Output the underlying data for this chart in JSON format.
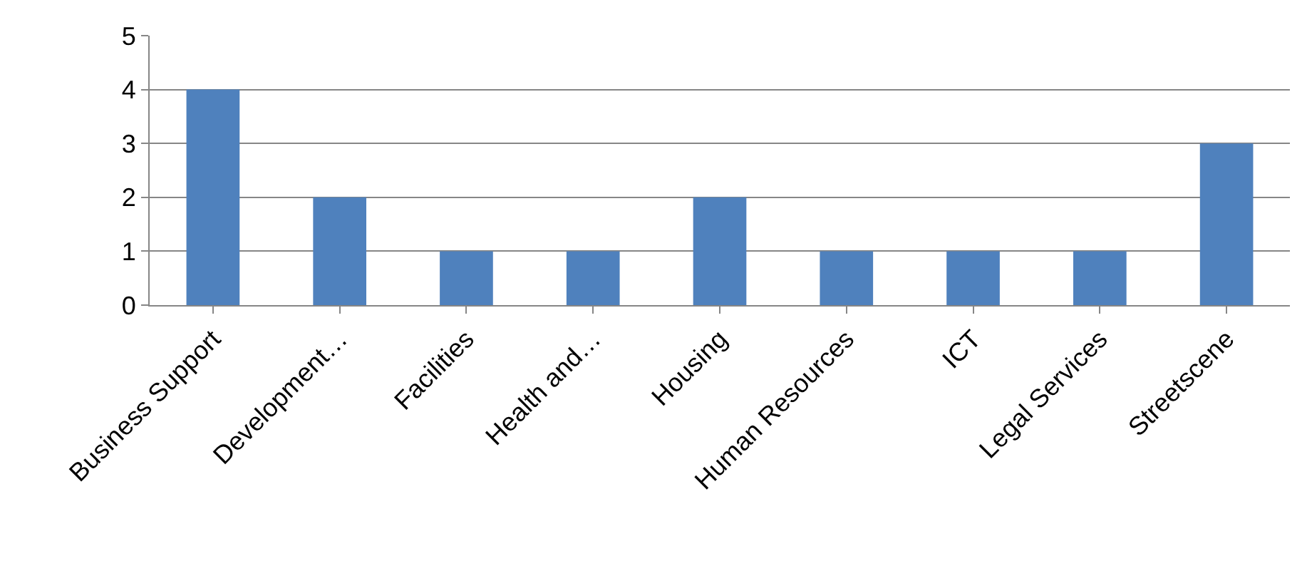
{
  "chart_data": {
    "type": "bar",
    "categories": [
      "Business Support",
      "Development…",
      "Facilities",
      "Health and…",
      "Housing",
      "Human Resources",
      "ICT",
      "Legal Services",
      "Streetscene"
    ],
    "values": [
      4,
      2,
      1,
      1,
      2,
      1,
      1,
      1,
      3
    ],
    "color": "#4f81bd",
    "ylim": [
      0,
      5
    ],
    "yticks": [
      0,
      1,
      2,
      3,
      4,
      5
    ],
    "grid": "y",
    "legend": false
  }
}
